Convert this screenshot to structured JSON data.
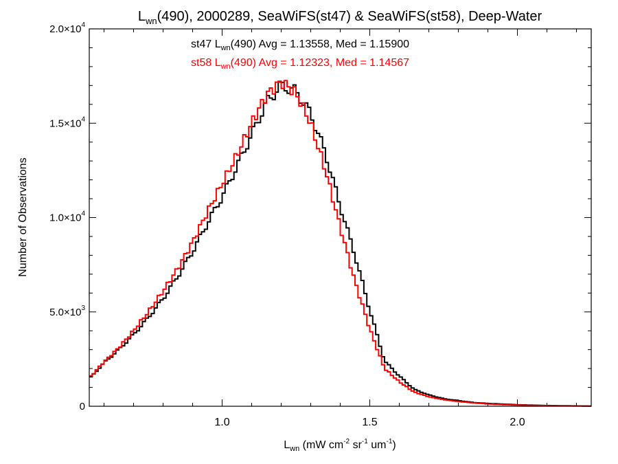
{
  "chart_data": {
    "type": "line",
    "title": {
      "base": "L",
      "sub": "wn",
      "rest": "(490), 2000289, SeaWiFS(st47) & SeaWiFS(st58), Deep-Water"
    },
    "xlabel": {
      "base": "L",
      "sub": "wn",
      "p1": " (mW cm",
      "sup1": "-2",
      "p2": " sr",
      "sup2": "-1",
      "p3": " um",
      "sup3": "-1",
      "p4": ")"
    },
    "ylabel": "Number of Observations",
    "xlim": [
      0.55,
      2.25
    ],
    "ylim": [
      0,
      20000
    ],
    "xticks": [
      {
        "value": 1.0,
        "label": "1.0"
      },
      {
        "value": 1.5,
        "label": "1.5"
      },
      {
        "value": 2.0,
        "label": "2.0"
      }
    ],
    "yticks": [
      {
        "value": 0,
        "mant": "0",
        "exp": ""
      },
      {
        "value": 5000,
        "mant": "5.0×10",
        "exp": "3"
      },
      {
        "value": 10000,
        "mant": "1.0×10",
        "exp": "4"
      },
      {
        "value": 15000,
        "mant": "1.5×10",
        "exp": "4"
      },
      {
        "value": 20000,
        "mant": "2.0×10",
        "exp": "4"
      }
    ],
    "grid": false,
    "legend_position": "top-center",
    "series": [
      {
        "name": "st47",
        "color": "#000000",
        "legend": {
          "pre": "st47 L",
          "sub": "wn",
          "post": "(490) Avg = 1.13558, Med = 1.15900"
        },
        "x": [
          0.55,
          0.6,
          0.65,
          0.7,
          0.75,
          0.8,
          0.85,
          0.9,
          0.95,
          1.0,
          1.05,
          1.1,
          1.15,
          1.2,
          1.25,
          1.3,
          1.35,
          1.4,
          1.45,
          1.5,
          1.55,
          1.6,
          1.65,
          1.7,
          1.75,
          1.8,
          1.85,
          1.9,
          2.0,
          2.1,
          2.25
        ],
        "y": [
          1450,
          2300,
          3000,
          3800,
          4700,
          5700,
          6900,
          8200,
          9700,
          11100,
          12700,
          14400,
          16100,
          17000,
          16700,
          15500,
          13400,
          10600,
          8000,
          5100,
          2400,
          1600,
          900,
          600,
          400,
          300,
          200,
          150,
          80,
          40,
          10
        ]
      },
      {
        "name": "st58",
        "color": "#ff0000",
        "legend": {
          "pre": "st58 L",
          "sub": "wn",
          "post": "(490) Avg = 1.12323, Med = 1.14567"
        },
        "x": [
          0.55,
          0.6,
          0.65,
          0.7,
          0.75,
          0.8,
          0.85,
          0.9,
          0.95,
          1.0,
          1.05,
          1.1,
          1.15,
          1.2,
          1.25,
          1.3,
          1.35,
          1.4,
          1.45,
          1.5,
          1.55,
          1.6,
          1.65,
          1.7,
          1.75,
          1.8,
          1.85,
          1.9,
          2.0,
          2.1,
          2.25
        ],
        "y": [
          1500,
          2350,
          3100,
          4000,
          5000,
          6100,
          7300,
          8700,
          10300,
          11800,
          13300,
          15000,
          16500,
          17200,
          16600,
          15000,
          12500,
          9500,
          6600,
          4100,
          2000,
          1300,
          750,
          500,
          350,
          250,
          180,
          120,
          60,
          30,
          8
        ]
      }
    ]
  }
}
